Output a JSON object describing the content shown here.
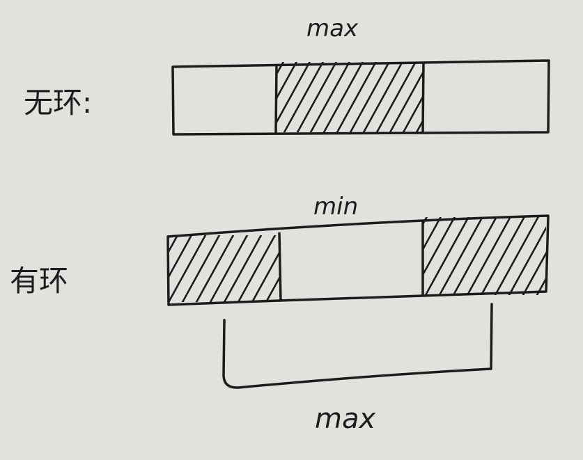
{
  "colors": {
    "paper": "#e3e1de",
    "ink": "#1c1c1c"
  },
  "diagram": {
    "no_cycle": {
      "side_label": "无环:",
      "top_label": "max",
      "segments": [
        {
          "role": "plain"
        },
        {
          "role": "hatched"
        },
        {
          "role": "plain"
        }
      ]
    },
    "with_cycle": {
      "side_label": "有环",
      "top_label": "min",
      "bottom_label": "max",
      "segments": [
        {
          "role": "hatched"
        },
        {
          "role": "plain"
        },
        {
          "role": "hatched"
        }
      ]
    }
  }
}
